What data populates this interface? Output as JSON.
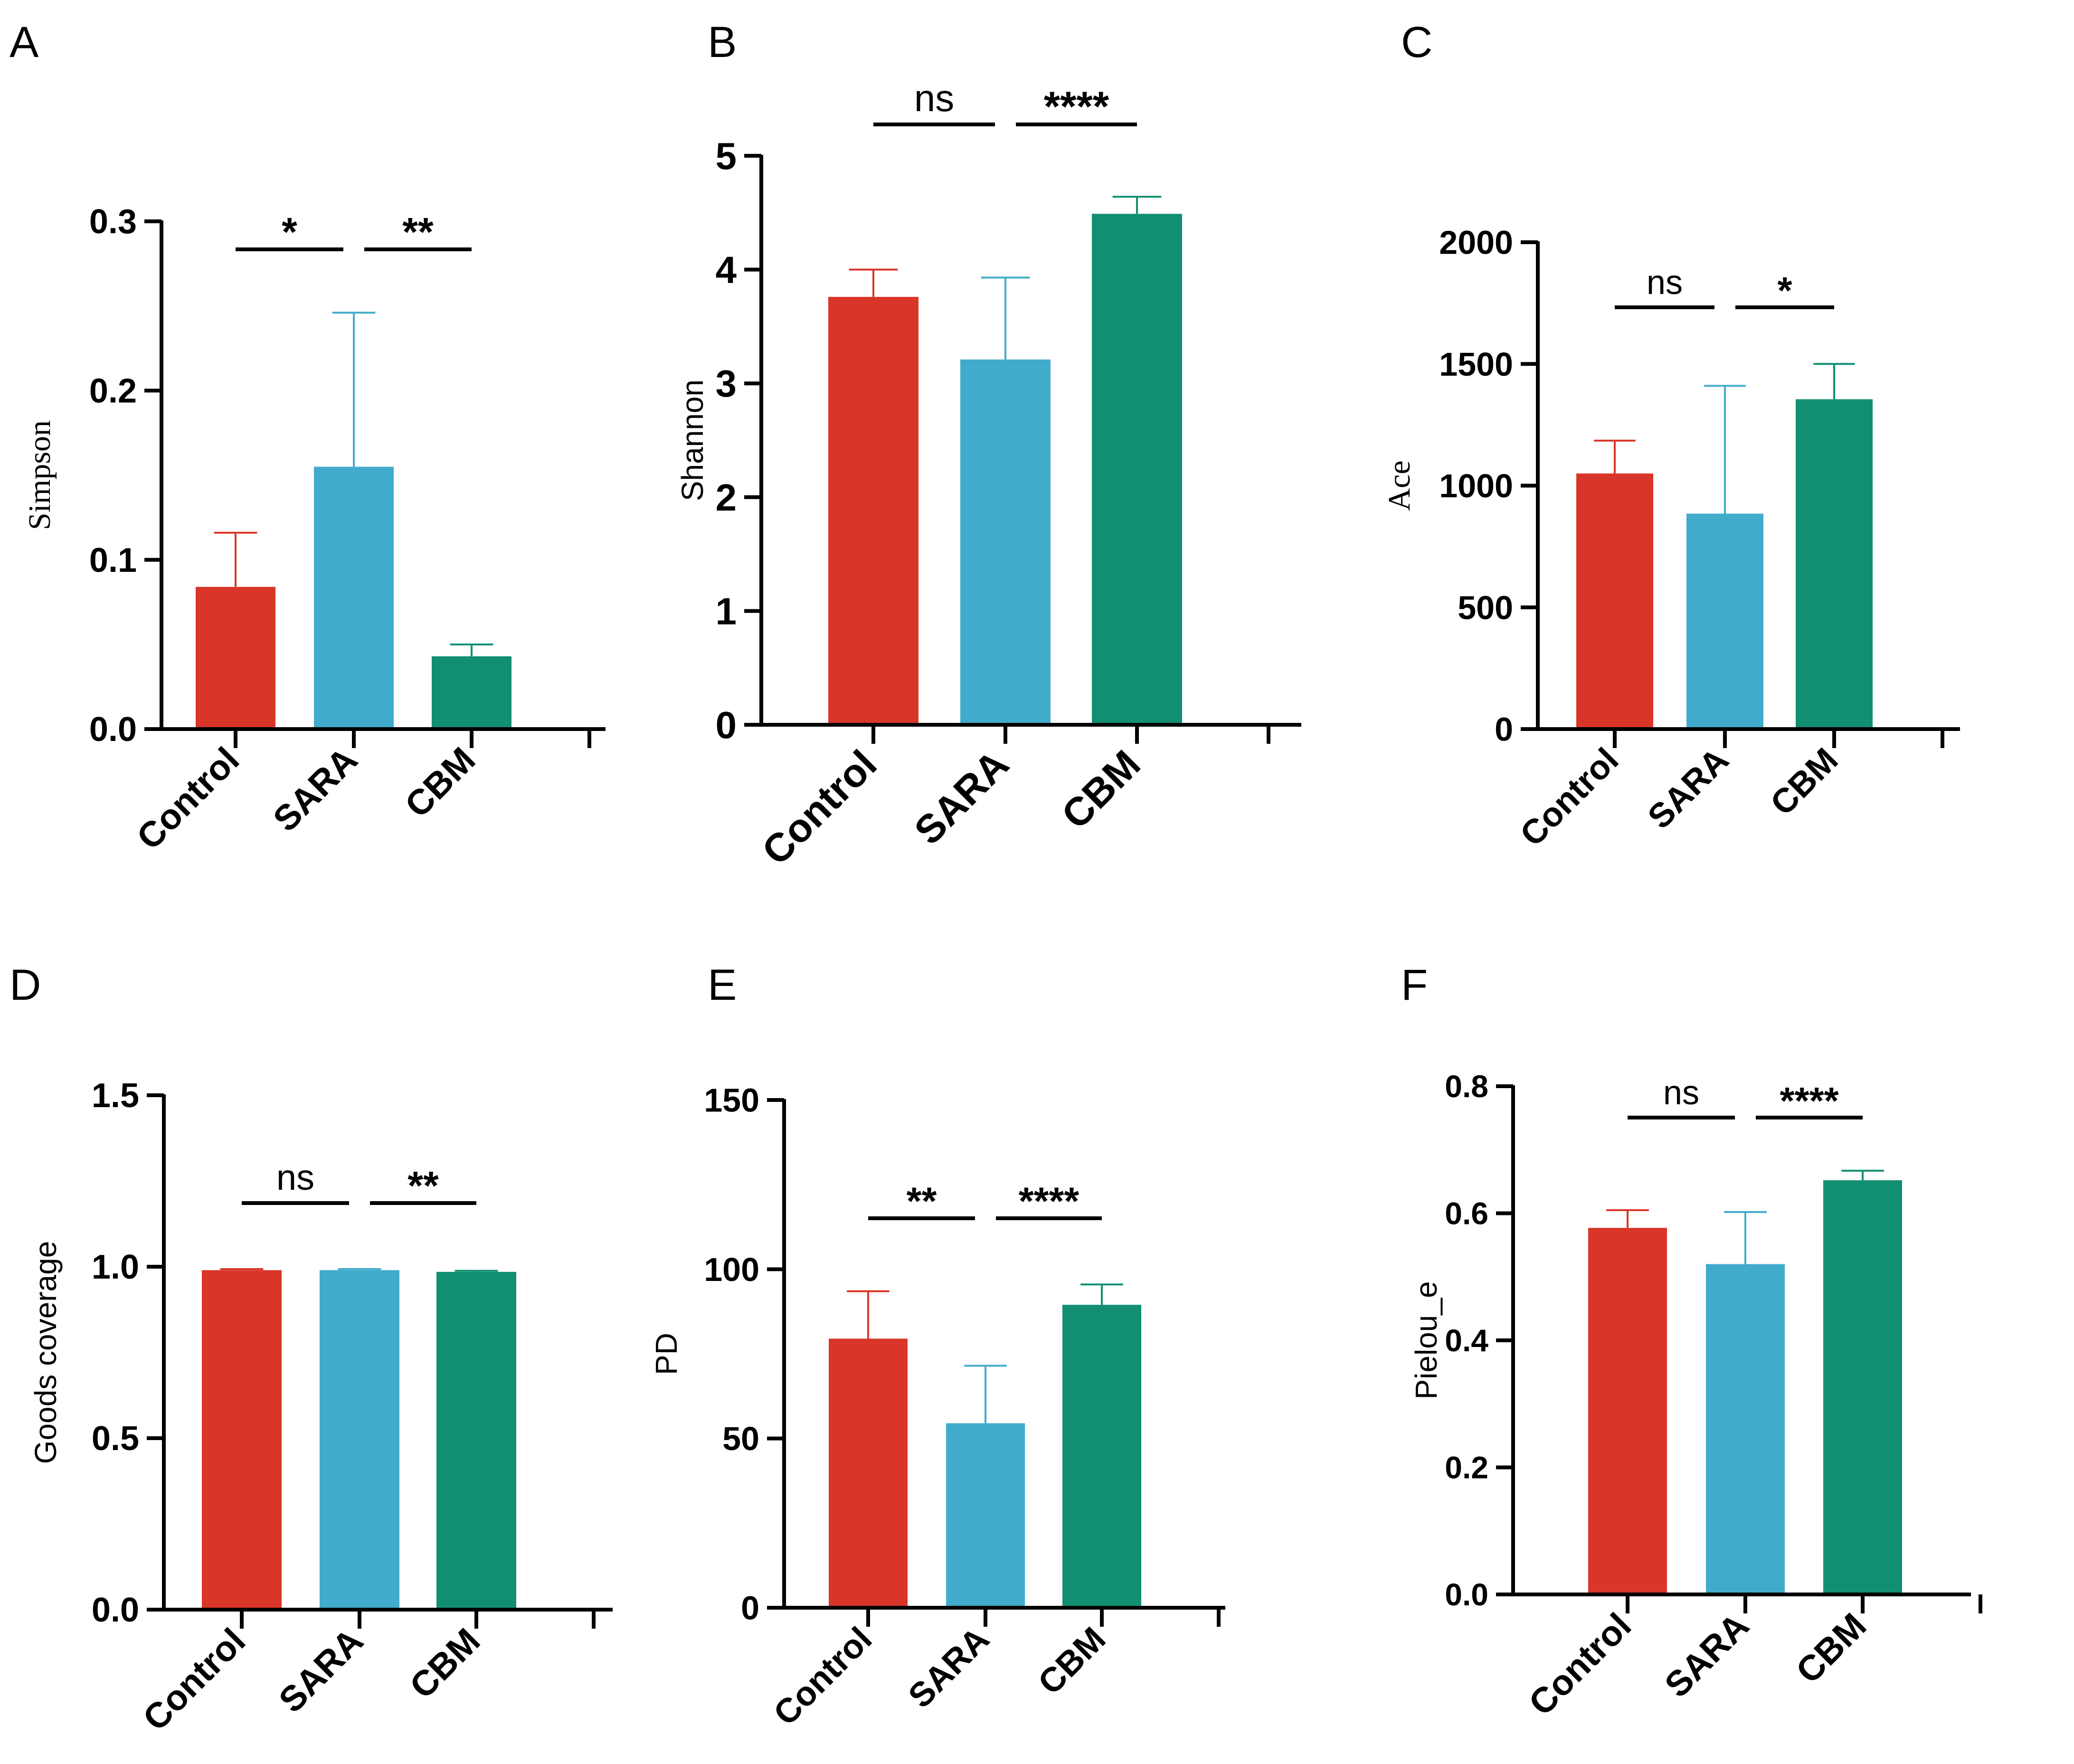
{
  "colors": {
    "Control": "#D93529",
    "SARA": "#41ABCB",
    "CBM": "#128F72",
    "axis": "#000000"
  },
  "chart_data": [
    {
      "panel": "A",
      "type": "bar",
      "ylabel": "Simpson",
      "ylabel_font": "serif",
      "categories": [
        "Control",
        "SARA",
        "CBM"
      ],
      "values": [
        0.084,
        0.155,
        0.043
      ],
      "errors": [
        0.032,
        0.091,
        0.007
      ],
      "ylim": [
        0,
        0.3
      ],
      "yticks": [
        0.0,
        0.1,
        0.2,
        0.3
      ],
      "ytick_labels": [
        "0.0",
        "0.1",
        "0.2",
        "0.3"
      ],
      "significance": [
        {
          "pair": [
            "Control",
            "SARA"
          ],
          "label": "*"
        },
        {
          "pair": [
            "SARA",
            "CBM"
          ],
          "label": "**"
        }
      ]
    },
    {
      "panel": "B",
      "type": "bar",
      "ylabel": "Shannon",
      "ylabel_font": "sans",
      "categories": [
        "Control",
        "SARA",
        "CBM"
      ],
      "values": [
        3.76,
        3.21,
        4.49
      ],
      "errors": [
        0.24,
        0.72,
        0.15
      ],
      "ylim": [
        0,
        5
      ],
      "yticks": [
        0,
        1,
        2,
        3,
        4,
        5
      ],
      "ytick_labels": [
        "0",
        "1",
        "2",
        "3",
        "4",
        "5"
      ],
      "significance": [
        {
          "pair": [
            "Control",
            "SARA"
          ],
          "label": "ns"
        },
        {
          "pair": [
            "SARA",
            "CBM"
          ],
          "label": "****"
        }
      ]
    },
    {
      "panel": "C",
      "type": "bar",
      "ylabel": "Ace",
      "ylabel_font": "serif",
      "categories": [
        "Control",
        "SARA",
        "CBM"
      ],
      "values": [
        1050,
        885,
        1355
      ],
      "errors": [
        135,
        525,
        145
      ],
      "ylim": [
        0,
        2000
      ],
      "yticks": [
        0,
        500,
        1000,
        1500,
        2000
      ],
      "ytick_labels": [
        "0",
        "500",
        "1000",
        "1500",
        "2000"
      ],
      "significance": [
        {
          "pair": [
            "Control",
            "SARA"
          ],
          "label": "ns"
        },
        {
          "pair": [
            "SARA",
            "CBM"
          ],
          "label": "*"
        }
      ]
    },
    {
      "panel": "D",
      "type": "bar",
      "ylabel": "Goods coverage",
      "ylabel_font": "sans",
      "categories": [
        "Control",
        "SARA",
        "CBM"
      ],
      "values": [
        0.99,
        0.99,
        0.985
      ],
      "errors": [
        0.003,
        0.003,
        0.003
      ],
      "ylim": [
        0,
        1.5
      ],
      "yticks": [
        0.0,
        0.5,
        1.0,
        1.5
      ],
      "ytick_labels": [
        "0.0",
        "0.5",
        "1.0",
        "1.5"
      ],
      "significance": [
        {
          "pair": [
            "Control",
            "SARA"
          ],
          "label": "ns"
        },
        {
          "pair": [
            "SARA",
            "CBM"
          ],
          "label": "**"
        }
      ]
    },
    {
      "panel": "E",
      "type": "bar",
      "ylabel": "PD",
      "ylabel_font": "sans",
      "categories": [
        "Control",
        "SARA",
        "CBM"
      ],
      "values": [
        79.5,
        54.5,
        89.5
      ],
      "errors": [
        14,
        17,
        6
      ],
      "ylim": [
        0,
        150
      ],
      "yticks": [
        0,
        50,
        100,
        150
      ],
      "ytick_labels": [
        "0",
        "50",
        "100",
        "150"
      ],
      "significance": [
        {
          "pair": [
            "Control",
            "SARA"
          ],
          "label": "**"
        },
        {
          "pair": [
            "SARA",
            "CBM"
          ],
          "label": "****"
        }
      ]
    },
    {
      "panel": "F",
      "type": "bar",
      "ylabel": "Pielou_e",
      "ylabel_font": "sans",
      "categories": [
        "Control",
        "SARA",
        "CBM"
      ],
      "values": [
        0.577,
        0.52,
        0.652
      ],
      "errors": [
        0.028,
        0.082,
        0.015
      ],
      "ylim": [
        0,
        0.8
      ],
      "yticks": [
        0.0,
        0.2,
        0.4,
        0.6,
        0.8
      ],
      "ytick_labels": [
        "0.0",
        "0.2",
        "0.4",
        "0.6",
        "0.8"
      ],
      "significance": [
        {
          "pair": [
            "Control",
            "SARA"
          ],
          "label": "ns"
        },
        {
          "pair": [
            "SARA",
            "CBM"
          ],
          "label": "****"
        }
      ]
    }
  ]
}
